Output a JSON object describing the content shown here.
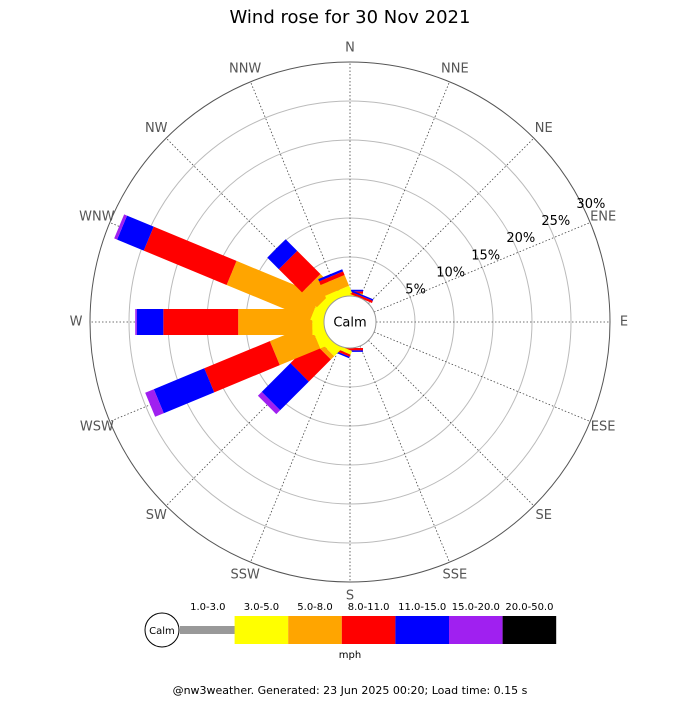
{
  "chart_data": {
    "type": "windrose",
    "title": "Wind rose for 30 Nov 2021",
    "categories": [
      "N",
      "NNE",
      "NE",
      "ENE",
      "E",
      "ESE",
      "SE",
      "SSE",
      "S",
      "SSW",
      "SW",
      "WSW",
      "W",
      "WNW",
      "NW",
      "NNW"
    ],
    "center_label": "Calm",
    "legend_unit": "mph",
    "rlim": [
      0,
      30
    ],
    "rticks": [
      {
        "value": 5,
        "label": "5%"
      },
      {
        "value": 10,
        "label": "10%"
      },
      {
        "value": 15,
        "label": "15%"
      },
      {
        "value": 20,
        "label": "20%"
      },
      {
        "value": 25,
        "label": "25%"
      },
      {
        "value": 30,
        "label": "30%"
      }
    ],
    "series": [
      {
        "name": "1.0-3.0",
        "color": "#999999",
        "values": [
          0,
          0,
          0,
          0,
          0,
          0,
          0,
          0,
          0,
          0,
          0,
          0,
          0,
          0,
          0,
          0
        ]
      },
      {
        "name": "3.0-5.0",
        "color": "#ffff00",
        "values": [
          0.3,
          0,
          0,
          0,
          0,
          0,
          0,
          0,
          0,
          0.5,
          1.2,
          1.5,
          1.5,
          1.5,
          1.0,
          1.0
        ]
      },
      {
        "name": "5.0-8.0",
        "color": "#ffa500",
        "values": [
          0,
          0,
          0,
          0,
          0,
          0,
          0,
          0,
          0,
          0,
          0.6,
          5.6,
          9.5,
          11.6,
          2.7,
          1.5
        ]
      },
      {
        "name": "8.0-11.0",
        "color": "#ff0000",
        "values": [
          0.3,
          0.3,
          0,
          0,
          0,
          0,
          0,
          0,
          0.3,
          0.3,
          4.0,
          9.1,
          9.6,
          11.5,
          4.2,
          0.5
        ]
      },
      {
        "name": "11.0-15.0",
        "color": "#0000ff",
        "values": [
          0.2,
          0.2,
          0,
          0,
          0,
          0,
          0,
          0,
          0.2,
          0.2,
          5.2,
          7.0,
          3.4,
          3.7,
          2.1,
          0.3
        ]
      },
      {
        "name": "15.0-20.0",
        "color": "#a020f0",
        "values": [
          0,
          0,
          0,
          0,
          0,
          0,
          0,
          0,
          0,
          0,
          0.7,
          1.2,
          0.2,
          0.4,
          0,
          0
        ]
      },
      {
        "name": "20.0-50.0",
        "color": "#000000",
        "values": [
          0,
          0,
          0,
          0,
          0,
          0,
          0,
          0,
          0,
          0,
          0,
          0,
          0,
          0,
          0,
          0
        ]
      }
    ],
    "footer": "@nw3weather. Generated: 23 Jun 2025 00:20; Load time: 0.15 s"
  }
}
